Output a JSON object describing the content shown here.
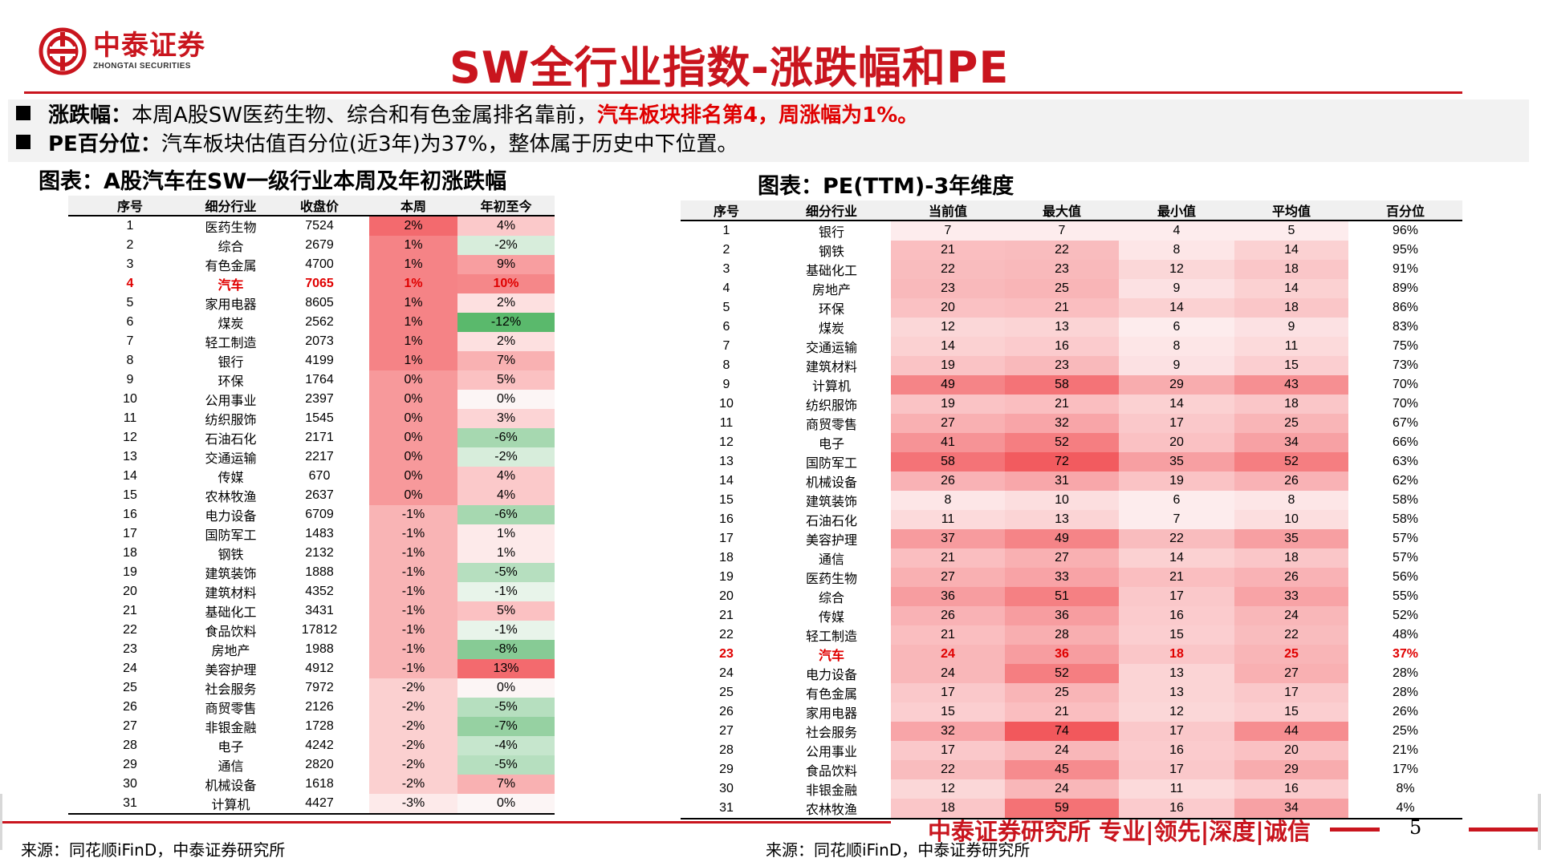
{
  "header": {
    "logo_cn": "中泰证券",
    "logo_en": "ZHONGTAI SECURITIES",
    "title": "SW全行业指数-涨跌幅和PE",
    "brand_color": "#c9151e"
  },
  "bullets": [
    {
      "label": "涨跌幅：",
      "text": "本周A股SW医药生物、综合和有色金属排名靠前，",
      "highlight": "汽车板块排名第4，周涨幅为1%。"
    },
    {
      "label": "PE百分位：",
      "text": "汽车板块估值百分位(近3年)为37%，整体属于历史中下位置。",
      "highlight": ""
    }
  ],
  "left_table": {
    "caption": "图表：A股汽车在SW一级行业本周及年初涨跌幅",
    "headers": [
      "序号",
      "细分行业",
      "收盘价",
      "本周",
      "年初至今"
    ],
    "rows": [
      [
        "1",
        "医药生物",
        "7524",
        "2%",
        "4%"
      ],
      [
        "2",
        "综合",
        "2679",
        "1%",
        "-2%"
      ],
      [
        "3",
        "有色金属",
        "4700",
        "1%",
        "9%"
      ],
      [
        "4",
        "汽车",
        "7065",
        "1%",
        "10%"
      ],
      [
        "5",
        "家用电器",
        "8605",
        "1%",
        "2%"
      ],
      [
        "6",
        "煤炭",
        "2562",
        "1%",
        "-12%"
      ],
      [
        "7",
        "轻工制造",
        "2073",
        "1%",
        "2%"
      ],
      [
        "8",
        "银行",
        "4199",
        "1%",
        "7%"
      ],
      [
        "9",
        "环保",
        "1764",
        "0%",
        "5%"
      ],
      [
        "10",
        "公用事业",
        "2397",
        "0%",
        "0%"
      ],
      [
        "11",
        "纺织服饰",
        "1545",
        "0%",
        "3%"
      ],
      [
        "12",
        "石油石化",
        "2171",
        "0%",
        "-6%"
      ],
      [
        "13",
        "交通运输",
        "2217",
        "0%",
        "-2%"
      ],
      [
        "14",
        "传媒",
        "670",
        "0%",
        "4%"
      ],
      [
        "15",
        "农林牧渔",
        "2637",
        "0%",
        "4%"
      ],
      [
        "16",
        "电力设备",
        "6709",
        "-1%",
        "-6%"
      ],
      [
        "17",
        "国防军工",
        "1483",
        "-1%",
        "1%"
      ],
      [
        "18",
        "钢铁",
        "2132",
        "-1%",
        "1%"
      ],
      [
        "19",
        "建筑装饰",
        "1888",
        "-1%",
        "-5%"
      ],
      [
        "20",
        "建筑材料",
        "4352",
        "-1%",
        "-1%"
      ],
      [
        "21",
        "基础化工",
        "3431",
        "-1%",
        "5%"
      ],
      [
        "22",
        "食品饮料",
        "17812",
        "-1%",
        "-1%"
      ],
      [
        "23",
        "房地产",
        "1988",
        "-1%",
        "-8%"
      ],
      [
        "24",
        "美容护理",
        "4912",
        "-1%",
        "13%"
      ],
      [
        "25",
        "社会服务",
        "7972",
        "-2%",
        "0%"
      ],
      [
        "26",
        "商贸零售",
        "2126",
        "-2%",
        "-5%"
      ],
      [
        "27",
        "非银金融",
        "1728",
        "-2%",
        "-7%"
      ],
      [
        "28",
        "电子",
        "4242",
        "-2%",
        "-4%"
      ],
      [
        "29",
        "通信",
        "2820",
        "-2%",
        "-5%"
      ],
      [
        "30",
        "机械设备",
        "1618",
        "-2%",
        "7%"
      ],
      [
        "31",
        "计算机",
        "4427",
        "-3%",
        "0%"
      ]
    ],
    "week_colors": [
      "#f36a6e",
      "#f58386",
      "#f58386",
      "#f58386",
      "#f58386",
      "#f58386",
      "#f58386",
      "#f58386",
      "#f7999b",
      "#f7999b",
      "#f7999b",
      "#f7999b",
      "#f7999b",
      "#f7999b",
      "#f7999b",
      "#f9b4b5",
      "#f9b4b5",
      "#f9b4b5",
      "#f9b4b5",
      "#f9b4b5",
      "#f9b4b5",
      "#f9b4b5",
      "#f9b4b5",
      "#f9b4b5",
      "#fbd0d0",
      "#fbd0d0",
      "#fbd0d0",
      "#fbd0d0",
      "#fbd0d0",
      "#fbd0d0",
      "#fdeaea"
    ],
    "ytd_colors": [
      "#fbc9ca",
      "#d7eddb",
      "#f89ea0",
      "#f58789",
      "#fde0e0",
      "#5ab96c",
      "#fde0e0",
      "#f9b1b2",
      "#fbc1c2",
      "#fcf5f5",
      "#fcd4d5",
      "#a6d8b0",
      "#d7eddb",
      "#fbc9ca",
      "#fbc9ca",
      "#a6d8b0",
      "#fdeaea",
      "#fdeaea",
      "#b6dfbf",
      "#e8f4ea",
      "#fbc1c2",
      "#e8f4ea",
      "#87cb95",
      "#f36a6e",
      "#fcf5f5",
      "#b6dfbf",
      "#96d1a2",
      "#c6e6cd",
      "#b6dfbf",
      "#f9b1b2",
      "#fcf5f5"
    ],
    "highlight_row": "4"
  },
  "right_table": {
    "caption": "图表：PE(TTM)-3年维度",
    "headers": [
      "序号",
      "细分行业",
      "当前值",
      "最大值",
      "最小值",
      "平均值",
      "百分位"
    ],
    "rows": [
      [
        "1",
        "银行",
        "7",
        "7",
        "4",
        "5",
        "96%"
      ],
      [
        "2",
        "钢铁",
        "21",
        "22",
        "8",
        "14",
        "95%"
      ],
      [
        "3",
        "基础化工",
        "22",
        "23",
        "12",
        "18",
        "91%"
      ],
      [
        "4",
        "房地产",
        "23",
        "25",
        "9",
        "14",
        "89%"
      ],
      [
        "5",
        "环保",
        "20",
        "21",
        "14",
        "18",
        "86%"
      ],
      [
        "6",
        "煤炭",
        "12",
        "13",
        "6",
        "9",
        "83%"
      ],
      [
        "7",
        "交通运输",
        "14",
        "16",
        "8",
        "11",
        "75%"
      ],
      [
        "8",
        "建筑材料",
        "19",
        "23",
        "9",
        "15",
        "73%"
      ],
      [
        "9",
        "计算机",
        "49",
        "58",
        "29",
        "43",
        "70%"
      ],
      [
        "10",
        "纺织服饰",
        "19",
        "21",
        "14",
        "18",
        "70%"
      ],
      [
        "11",
        "商贸零售",
        "27",
        "32",
        "17",
        "25",
        "67%"
      ],
      [
        "12",
        "电子",
        "41",
        "52",
        "20",
        "34",
        "66%"
      ],
      [
        "13",
        "国防军工",
        "58",
        "72",
        "35",
        "52",
        "63%"
      ],
      [
        "14",
        "机械设备",
        "26",
        "31",
        "19",
        "26",
        "62%"
      ],
      [
        "15",
        "建筑装饰",
        "8",
        "10",
        "6",
        "8",
        "58%"
      ],
      [
        "16",
        "石油石化",
        "11",
        "13",
        "7",
        "10",
        "58%"
      ],
      [
        "17",
        "美容护理",
        "37",
        "49",
        "22",
        "35",
        "57%"
      ],
      [
        "18",
        "通信",
        "21",
        "27",
        "14",
        "18",
        "57%"
      ],
      [
        "19",
        "医药生物",
        "27",
        "33",
        "21",
        "26",
        "56%"
      ],
      [
        "20",
        "综合",
        "36",
        "51",
        "17",
        "33",
        "55%"
      ],
      [
        "21",
        "传媒",
        "26",
        "36",
        "16",
        "24",
        "52%"
      ],
      [
        "22",
        "轻工制造",
        "21",
        "28",
        "15",
        "22",
        "48%"
      ],
      [
        "23",
        "汽车",
        "24",
        "36",
        "18",
        "25",
        "37%"
      ],
      [
        "24",
        "电力设备",
        "24",
        "52",
        "13",
        "27",
        "28%"
      ],
      [
        "25",
        "有色金属",
        "17",
        "25",
        "13",
        "17",
        "28%"
      ],
      [
        "26",
        "家用电器",
        "15",
        "21",
        "12",
        "15",
        "26%"
      ],
      [
        "27",
        "社会服务",
        "32",
        "74",
        "17",
        "44",
        "25%"
      ],
      [
        "28",
        "公用事业",
        "17",
        "24",
        "16",
        "20",
        "21%"
      ],
      [
        "29",
        "食品饮料",
        "22",
        "45",
        "17",
        "29",
        "17%"
      ],
      [
        "30",
        "非银金融",
        "12",
        "24",
        "11",
        "16",
        "8%"
      ],
      [
        "31",
        "农林牧渔",
        "18",
        "59",
        "16",
        "34",
        "4%"
      ]
    ],
    "highlight_row": "23"
  },
  "sources": {
    "left": "来源：同花顺iFinD，中泰证券研究所",
    "right": "来源：同花顺iFinD，中泰证券研究所"
  },
  "footer": {
    "slogan": "中泰证券研究所 专业|领先|深度|诚信",
    "page": "5"
  }
}
